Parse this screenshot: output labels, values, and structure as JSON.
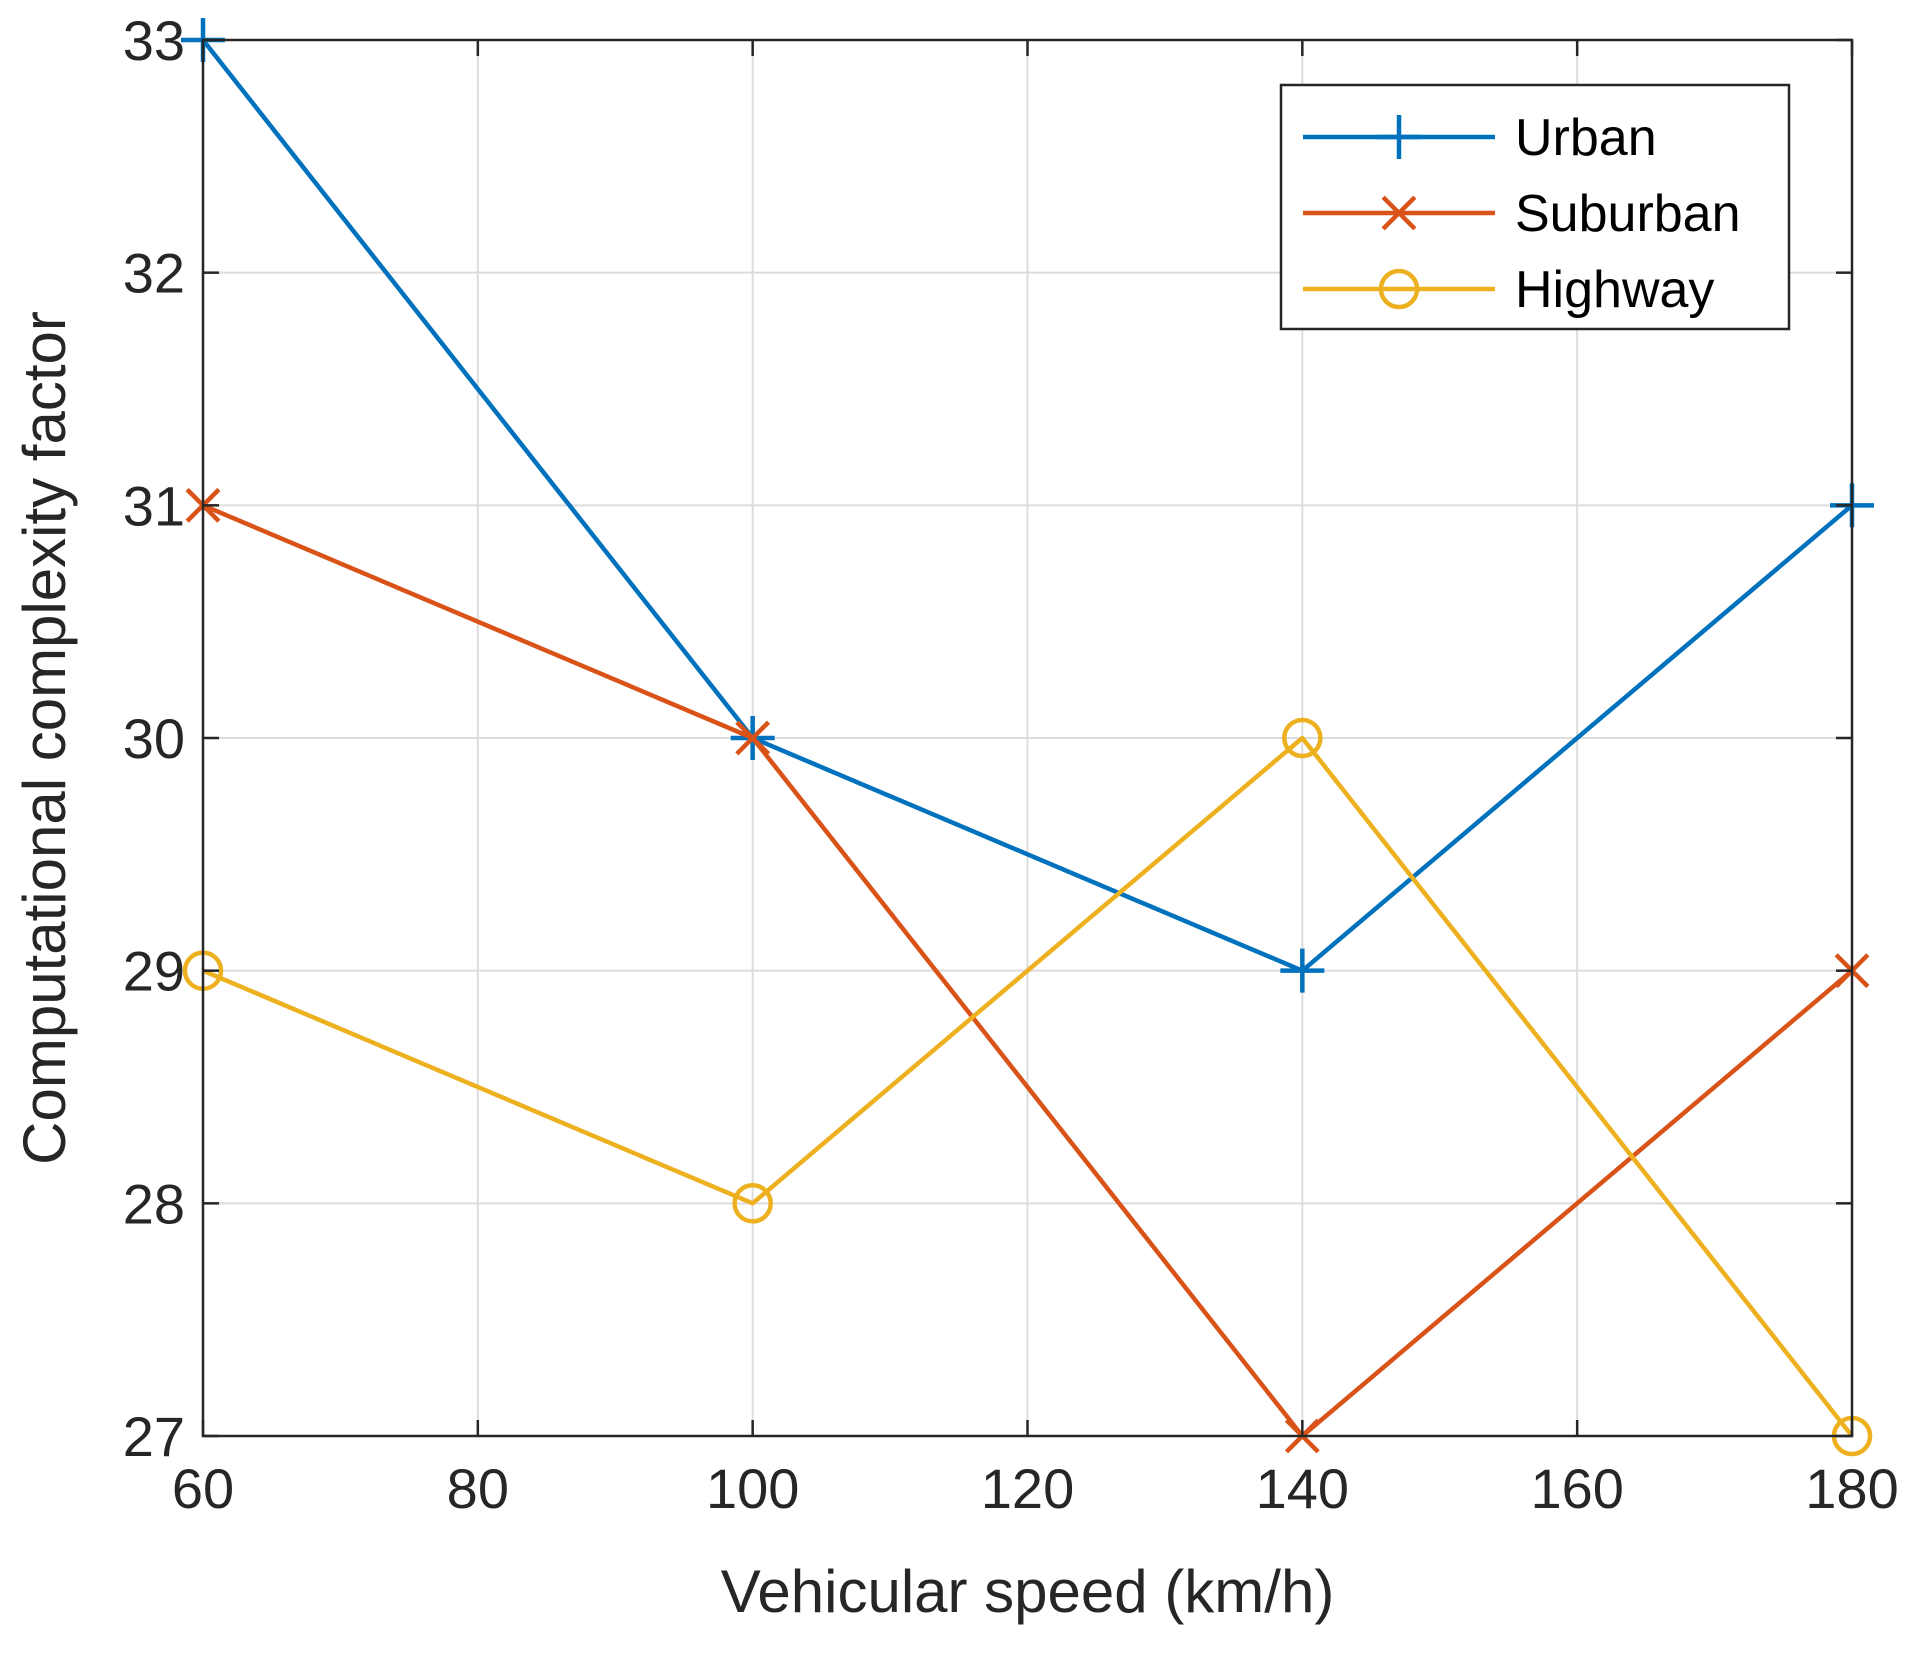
{
  "chart_data": {
    "type": "line",
    "title": "",
    "xlabel": "Vehicular speed (km/h)",
    "ylabel": "Computational complexity factor",
    "xlim": [
      60,
      180
    ],
    "ylim": [
      27,
      33
    ],
    "xticks": [
      60,
      80,
      100,
      120,
      140,
      160,
      180
    ],
    "yticks": [
      27,
      28,
      29,
      30,
      31,
      32,
      33
    ],
    "xtick_labels": [
      "60",
      "80",
      "100",
      "120",
      "140",
      "160",
      "180"
    ],
    "ytick_labels": [
      "27",
      "28",
      "29",
      "30",
      "31",
      "32",
      "33"
    ],
    "grid": true,
    "legend_position": "top-right",
    "x": [
      60,
      100,
      140,
      180
    ],
    "series": [
      {
        "name": "Urban",
        "values": [
          33,
          30,
          29,
          31
        ],
        "color": "#0072BD",
        "marker": "plus"
      },
      {
        "name": "Suburban",
        "values": [
          31,
          30,
          27,
          29
        ],
        "color": "#D95319",
        "marker": "x"
      },
      {
        "name": "Highway",
        "values": [
          29,
          28,
          30,
          27
        ],
        "color": "#EDB120",
        "marker": "circle"
      }
    ]
  }
}
